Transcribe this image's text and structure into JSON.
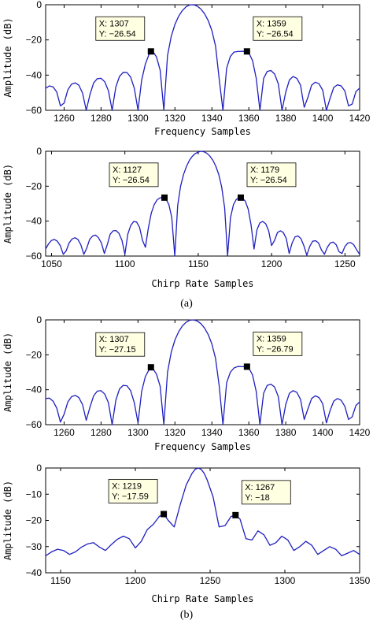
{
  "figure": {
    "caption_a": "(a)",
    "caption_b": "(b)"
  },
  "chart_data": [
    {
      "type": "line",
      "panel": "a-top",
      "xlabel": "Frequency Samples",
      "ylabel": "Amplitude (dB)",
      "xlim": [
        1250,
        1420
      ],
      "ylim": [
        -60,
        0
      ],
      "xticks": [
        "1260",
        "1280",
        "1300",
        "1320",
        "1340",
        "1360",
        "1380",
        "1400",
        "1420"
      ],
      "yticks": [
        "0",
        "−20",
        "−40",
        "−60"
      ],
      "line_color": "#1f1fbf",
      "series": [
        {
          "x": [
            1250,
            1252,
            1254,
            1256,
            1258,
            1260,
            1262,
            1264,
            1266,
            1268,
            1270,
            1272,
            1274,
            1276,
            1278,
            1280,
            1282,
            1284,
            1286,
            1288,
            1290,
            1292,
            1294,
            1296,
            1298,
            1300,
            1302,
            1304,
            1306,
            1307,
            1308,
            1310,
            1312,
            1314,
            1316,
            1318,
            1320,
            1322,
            1324,
            1326,
            1328,
            1330,
            1332,
            1334,
            1336,
            1338,
            1340,
            1342,
            1344,
            1346,
            1348,
            1350,
            1352,
            1354,
            1356,
            1358,
            1359,
            1360,
            1362,
            1364,
            1366,
            1368,
            1370,
            1372,
            1374,
            1376,
            1378,
            1380,
            1382,
            1384,
            1386,
            1388,
            1390,
            1392,
            1394,
            1396,
            1398,
            1400,
            1402,
            1404,
            1406,
            1408,
            1410,
            1412,
            1414,
            1416,
            1418,
            1420
          ],
          "y": [
            -47.5,
            -46.1,
            -46.7,
            -49.6,
            -57.5,
            -55.9,
            -48.4,
            -45.1,
            -44.4,
            -45.7,
            -50.2,
            -60,
            -51.1,
            -44.4,
            -42,
            -41.8,
            -43.8,
            -48.9,
            -60,
            -46.7,
            -40.7,
            -38.4,
            -38.5,
            -41.1,
            -47.5,
            -60,
            -42.9,
            -33.7,
            -28.2,
            -26.5,
            -26.5,
            -29.6,
            -37.1,
            -60,
            -28.9,
            -18,
            -11.2,
            -6.6,
            -3.3,
            -1.2,
            -0.1,
            0,
            -0.7,
            -2.4,
            -5,
            -8.9,
            -14.6,
            -23.4,
            -42.4,
            -60,
            -36.1,
            -29.4,
            -26.9,
            -26.6,
            -26.5,
            -26.5,
            -26.5,
            -27.3,
            -31.7,
            -41.8,
            -60,
            -41.9,
            -37.9,
            -37.4,
            -39.4,
            -45,
            -60,
            -49.7,
            -42.7,
            -40.8,
            -41.8,
            -45.7,
            -58.3,
            -52.6,
            -45.7,
            -44,
            -44.9,
            -48.6,
            -60,
            -53.3,
            -47,
            -45.5,
            -46.1,
            -49,
            -57.5,
            -56.4,
            -49.4,
            -47.4
          ]
        }
      ],
      "datatips": [
        {
          "x": 1307,
          "y": -26.54,
          "label_x": "X: 1307",
          "label_y": "Y: −26.54"
        },
        {
          "x": 1359,
          "y": -26.54,
          "label_x": "X: 1359",
          "label_y": "Y: −26.54"
        }
      ]
    },
    {
      "type": "line",
      "panel": "a-bottom",
      "xlabel": "Chirp Rate Samples",
      "ylabel": "Amplitude (dB)",
      "xlim": [
        1046,
        1260
      ],
      "ylim": [
        -60,
        0
      ],
      "xticks": [
        "1050",
        "1100",
        "1150",
        "1200",
        "1250"
      ],
      "yticks": [
        "0",
        "−20",
        "−40",
        "−60"
      ],
      "line_color": "#1f1fbf",
      "series": [
        {
          "x": [
            1046,
            1048,
            1050,
            1052,
            1054,
            1056,
            1058,
            1060,
            1062,
            1064,
            1066,
            1068,
            1070,
            1072,
            1074,
            1076,
            1078,
            1080,
            1082,
            1084,
            1086,
            1088,
            1090,
            1092,
            1094,
            1096,
            1098,
            1100,
            1102,
            1104,
            1106,
            1108,
            1110,
            1112,
            1114,
            1116,
            1118,
            1120,
            1122,
            1124,
            1126,
            1127,
            1128,
            1130,
            1132,
            1134,
            1136,
            1138,
            1140,
            1142,
            1144,
            1146,
            1148,
            1150,
            1152,
            1154,
            1156,
            1158,
            1160,
            1162,
            1164,
            1166,
            1168,
            1170,
            1172,
            1174,
            1176,
            1178,
            1179,
            1180,
            1182,
            1184,
            1186,
            1188,
            1190,
            1192,
            1194,
            1196,
            1198,
            1200,
            1202,
            1204,
            1206,
            1208,
            1210,
            1212,
            1214,
            1216,
            1218,
            1220,
            1222,
            1224,
            1226,
            1228,
            1230,
            1232,
            1234,
            1236,
            1238,
            1240,
            1242,
            1244,
            1246,
            1248,
            1250,
            1252,
            1254,
            1256,
            1258,
            1260
          ],
          "y": [
            -56,
            -53,
            -51,
            -50.5,
            -51.5,
            -54,
            -59,
            -57,
            -52.5,
            -50.2,
            -49.5,
            -50.5,
            -53.5,
            -59,
            -55.5,
            -50.5,
            -48.5,
            -48,
            -49.5,
            -52.5,
            -58.5,
            -53.5,
            -47.5,
            -45.5,
            -45.4,
            -47,
            -51,
            -59,
            -47.5,
            -42.5,
            -40.2,
            -40.5,
            -43.5,
            -51,
            -55,
            -44,
            -35.5,
            -30.5,
            -27.8,
            -26.6,
            -26.6,
            -26.54,
            -27.4,
            -30.5,
            -38,
            -60,
            -31,
            -20,
            -13.2,
            -8.6,
            -5.2,
            -2.9,
            -1.3,
            -0.4,
            0,
            -0.3,
            -1.2,
            -2.8,
            -5.2,
            -8.6,
            -13.3,
            -20.5,
            -32.5,
            -60,
            -38,
            -30.5,
            -27.5,
            -26.6,
            -26.54,
            -26.7,
            -28.5,
            -33,
            -42,
            -56,
            -45,
            -41,
            -40.2,
            -41.5,
            -45.5,
            -54,
            -51,
            -46.5,
            -45.5,
            -46.5,
            -50,
            -58.5,
            -52.5,
            -49,
            -48.5,
            -50,
            -54,
            -59.5,
            -54.5,
            -51.5,
            -51.2,
            -52.5,
            -56.5,
            -59,
            -55,
            -52.5,
            -52,
            -53.5,
            -57.5,
            -58.5,
            -54.5,
            -52.5,
            -52.3,
            -53.5,
            -56.5,
            -59
          ]
        }
      ],
      "datatips": [
        {
          "x": 1127,
          "y": -26.54,
          "label_x": "X: 1127",
          "label_y": "Y: −26.54"
        },
        {
          "x": 1179,
          "y": -26.54,
          "label_x": "X: 1179",
          "label_y": "Y: −26.54"
        }
      ]
    },
    {
      "type": "line",
      "panel": "b-top",
      "xlabel": "Frequency Samples",
      "ylabel": "Amplitude (dB)",
      "xlim": [
        1250,
        1420
      ],
      "ylim": [
        -60,
        0
      ],
      "xticks": [
        "1260",
        "1280",
        "1300",
        "1320",
        "1340",
        "1360",
        "1380",
        "1400",
        "1420"
      ],
      "yticks": [
        "0",
        "−20",
        "−40",
        "−60"
      ],
      "line_color": "#1f1fbf",
      "series": [
        {
          "x": [
            1250,
            1252,
            1254,
            1256,
            1258,
            1260,
            1262,
            1264,
            1266,
            1268,
            1270,
            1272,
            1274,
            1276,
            1278,
            1280,
            1282,
            1284,
            1286,
            1288,
            1290,
            1292,
            1294,
            1296,
            1298,
            1300,
            1302,
            1304,
            1306,
            1307,
            1308,
            1310,
            1312,
            1314,
            1316,
            1318,
            1320,
            1322,
            1324,
            1326,
            1328,
            1330,
            1332,
            1334,
            1336,
            1338,
            1340,
            1342,
            1344,
            1346,
            1348,
            1350,
            1352,
            1354,
            1356,
            1358,
            1359,
            1360,
            1362,
            1364,
            1366,
            1368,
            1370,
            1372,
            1374,
            1376,
            1378,
            1380,
            1382,
            1384,
            1386,
            1388,
            1390,
            1392,
            1394,
            1396,
            1398,
            1400,
            1402,
            1404,
            1406,
            1408,
            1410,
            1412,
            1414,
            1416,
            1418,
            1420
          ],
          "y": [
            -45,
            -44.8,
            -46.5,
            -50.5,
            -58.5,
            -54,
            -47,
            -44,
            -43.2,
            -44.5,
            -48.5,
            -57.5,
            -50,
            -43.5,
            -40.8,
            -40.5,
            -42.5,
            -47.5,
            -60,
            -46,
            -39.5,
            -37.5,
            -37.7,
            -40.5,
            -47.5,
            -59,
            -41,
            -32.5,
            -28.5,
            -27.15,
            -27.8,
            -31,
            -38,
            -60,
            -30,
            -18.5,
            -11.5,
            -6.8,
            -3.5,
            -1.4,
            -0.2,
            0,
            -0.6,
            -2.1,
            -4.6,
            -8.3,
            -13.7,
            -22,
            -38,
            -60,
            -36,
            -30,
            -27.5,
            -26.7,
            -26.8,
            -26.8,
            -26.79,
            -27.5,
            -31.5,
            -41,
            -60,
            -42,
            -37.5,
            -36.8,
            -38.5,
            -44,
            -60,
            -48.5,
            -42,
            -40.5,
            -41.5,
            -45.5,
            -57,
            -51,
            -45,
            -43.5,
            -44.5,
            -48,
            -59,
            -52,
            -46.5,
            -45,
            -46,
            -49.5,
            -57,
            -55.5,
            -49,
            -47
          ]
        }
      ],
      "datatips": [
        {
          "x": 1307,
          "y": -27.15,
          "label_x": "X: 1307",
          "label_y": "Y: −27.15"
        },
        {
          "x": 1359,
          "y": -26.79,
          "label_x": "X: 1359",
          "label_y": "Y: −26.79"
        }
      ]
    },
    {
      "type": "line",
      "panel": "b-bottom",
      "xlabel": "Chirp Rate Samples",
      "ylabel": "Amplitude (dB)",
      "xlim": [
        1140,
        1350
      ],
      "ylim": [
        -40,
        0
      ],
      "xticks": [
        "1150",
        "1200",
        "1250",
        "1300",
        "1350"
      ],
      "yticks": [
        "0",
        "−10",
        "−20",
        "−30",
        "−40"
      ],
      "line_color": "#1f1fbf",
      "series": [
        {
          "x": [
            1140,
            1144,
            1148,
            1152,
            1156,
            1160,
            1164,
            1168,
            1172,
            1176,
            1180,
            1184,
            1188,
            1192,
            1196,
            1200,
            1204,
            1208,
            1212,
            1216,
            1219,
            1222,
            1226,
            1230,
            1234,
            1238,
            1240,
            1242,
            1244,
            1246,
            1248,
            1252,
            1256,
            1260,
            1264,
            1267,
            1270,
            1274,
            1278,
            1282,
            1286,
            1290,
            1294,
            1298,
            1302,
            1306,
            1310,
            1314,
            1318,
            1322,
            1326,
            1330,
            1334,
            1338,
            1342,
            1346,
            1350
          ],
          "y": [
            -33.5,
            -32,
            -31,
            -31.5,
            -33,
            -32,
            -30.2,
            -29,
            -28.5,
            -30.2,
            -31.5,
            -29.2,
            -27.2,
            -26,
            -27,
            -30.5,
            -28,
            -23.5,
            -21.5,
            -18.5,
            -17.59,
            -20,
            -22.5,
            -14,
            -6.5,
            -2,
            -0.5,
            0,
            -0.5,
            -2,
            -4.5,
            -11,
            -22.5,
            -22,
            -18.5,
            -18,
            -19.5,
            -27,
            -27.5,
            -24,
            -25.5,
            -29.5,
            -28.5,
            -26,
            -27.5,
            -31.5,
            -30,
            -28,
            -29.5,
            -33,
            -31.5,
            -30,
            -31,
            -33.5,
            -32.5,
            -31.5,
            -33
          ]
        }
      ],
      "datatips": [
        {
          "x": 1219,
          "y": -17.59,
          "label_x": "X: 1219",
          "label_y": "Y: −17.59"
        },
        {
          "x": 1267,
          "y": -18,
          "label_x": "X: 1267",
          "label_y": "Y: −18"
        }
      ]
    }
  ]
}
